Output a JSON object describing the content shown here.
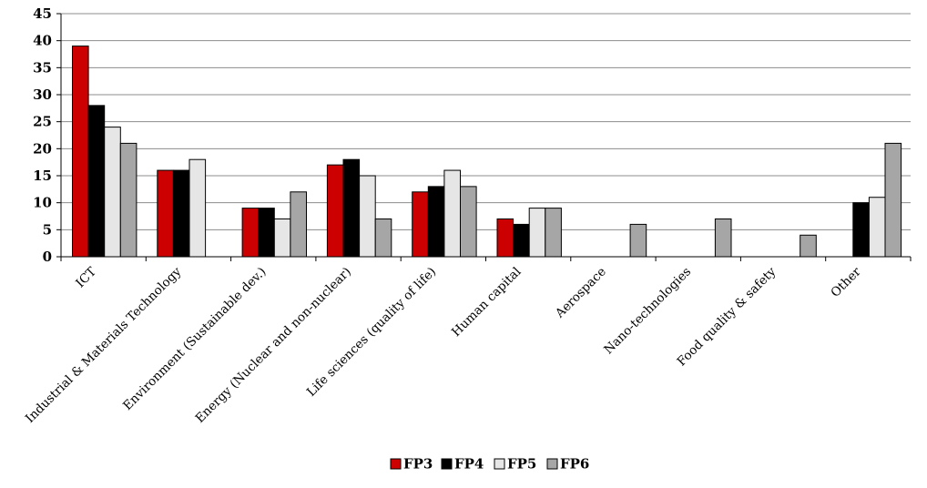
{
  "chart_data": {
    "type": "bar",
    "categories": [
      "ICT",
      "Industrial & Materials Technology",
      "Environment (Sustainable dev.)",
      "Energy (Nuclear and non-nuclear)",
      "Life sciences (quality of life)",
      "Human capital",
      "Aerospace",
      "Nano-technologies",
      "Food quality & safety",
      "Other"
    ],
    "series": [
      {
        "name": "FP3",
        "color": "#cc0000",
        "values": [
          39,
          16,
          9,
          17,
          12,
          7,
          null,
          null,
          null,
          null
        ]
      },
      {
        "name": "FP4",
        "color": "#000000",
        "values": [
          28,
          16,
          9,
          18,
          13,
          6,
          null,
          null,
          null,
          10
        ]
      },
      {
        "name": "FP5",
        "color": "#e6e6e6",
        "values": [
          24,
          18,
          7,
          15,
          16,
          9,
          null,
          null,
          null,
          11
        ]
      },
      {
        "name": "FP6",
        "color": "#a6a6a6",
        "values": [
          21,
          null,
          12,
          7,
          13,
          9,
          6,
          7,
          4,
          21
        ]
      }
    ],
    "ylim": [
      0,
      45
    ],
    "yticks": [
      0,
      5,
      10,
      15,
      20,
      25,
      30,
      35,
      40,
      45
    ],
    "grid": true,
    "legend_position": "bottom-center",
    "title": "",
    "xlabel": "",
    "ylabel": ""
  }
}
